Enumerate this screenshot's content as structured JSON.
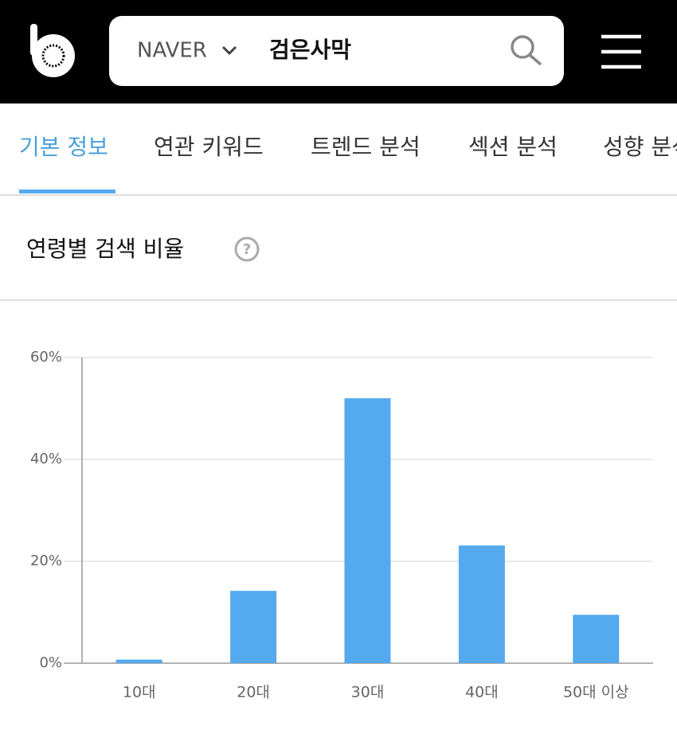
{
  "header": {
    "search_engine": "NAVER",
    "query": "검은사막"
  },
  "tabs": [
    "기본 정보",
    "연관 키워드",
    "트렌드 분석",
    "섹션 분석",
    "성향 분석"
  ],
  "section_title": "연령별 검색 비율",
  "chart_data": {
    "type": "bar",
    "categories": [
      "10대",
      "20대",
      "30대",
      "40대",
      "50대 이상"
    ],
    "values": [
      0.7,
      14.2,
      52,
      23.1,
      9.5
    ],
    "color": "#55a9ee",
    "ylim": [
      0,
      60
    ],
    "yticks": [
      {
        "value": 0,
        "label": "0%"
      },
      {
        "value": 20,
        "label": "20%"
      },
      {
        "value": 40,
        "label": "40%"
      },
      {
        "value": 60,
        "label": "60%"
      }
    ],
    "grid": true
  }
}
